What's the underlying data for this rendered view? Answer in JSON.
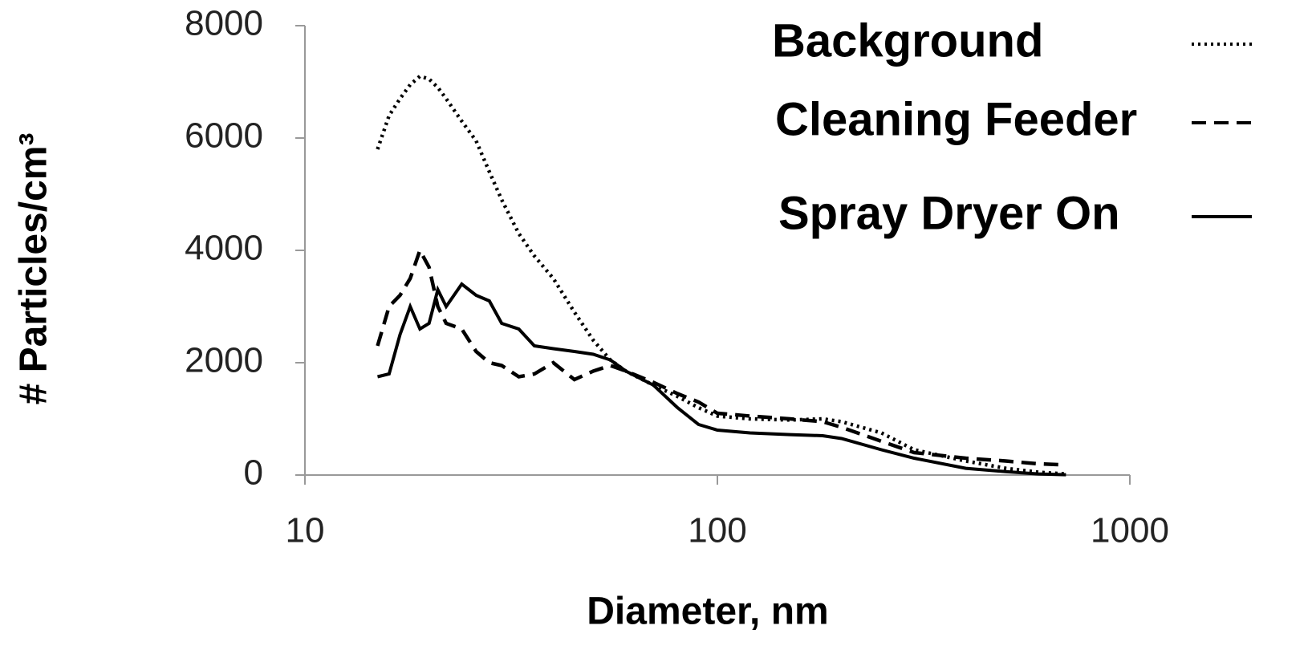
{
  "chart_data": {
    "type": "line",
    "x_label": "Diameter, nm",
    "y_label": "# Particles/cm³",
    "x": [
      15,
      16,
      17,
      18,
      19,
      20,
      21,
      22,
      24,
      26,
      28,
      30,
      33,
      36,
      40,
      45,
      50,
      55,
      60,
      70,
      80,
      90,
      100,
      120,
      150,
      180,
      200,
      250,
      300,
      400,
      500,
      600,
      700
    ],
    "series": [
      {
        "name": "Background",
        "color": "#000000",
        "style": "dotted",
        "values": [
          5800,
          6400,
          6700,
          6950,
          7100,
          7050,
          6900,
          6700,
          6300,
          5950,
          5400,
          4900,
          4300,
          3900,
          3500,
          2900,
          2400,
          2050,
          1850,
          1600,
          1400,
          1200,
          1050,
          1000,
          980,
          1000,
          950,
          750,
          450,
          250,
          120,
          50,
          20
        ]
      },
      {
        "name": "Cleaning Feeder",
        "color": "#000000",
        "style": "dashed",
        "values": [
          2300,
          3000,
          3200,
          3500,
          4000,
          3700,
          3000,
          2700,
          2600,
          2200,
          2000,
          1950,
          1750,
          1800,
          2000,
          1700,
          1850,
          1950,
          1850,
          1650,
          1450,
          1300,
          1100,
          1050,
          1000,
          950,
          850,
          600,
          400,
          300,
          250,
          200,
          180
        ]
      },
      {
        "name": "Spray Dryer On",
        "color": "#000000",
        "style": "solid",
        "values": [
          1750,
          1800,
          2500,
          3000,
          2600,
          2700,
          3300,
          3000,
          3400,
          3200,
          3100,
          2700,
          2600,
          2300,
          2250,
          2200,
          2150,
          2050,
          1850,
          1600,
          1200,
          900,
          800,
          750,
          720,
          700,
          650,
          450,
          300,
          120,
          60,
          20,
          5
        ]
      }
    ],
    "x_log": true,
    "xlim": [
      10,
      1000
    ],
    "xticks": [
      10,
      100,
      1000
    ],
    "ylim": [
      0,
      8000
    ],
    "yticks": [
      0,
      2000,
      4000,
      6000,
      8000
    ],
    "grid": false
  }
}
